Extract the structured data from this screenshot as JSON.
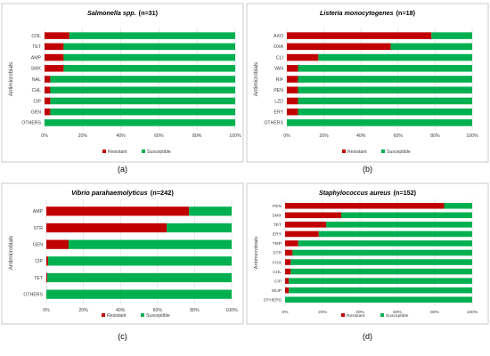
{
  "chart_data": [
    {
      "type": "bar",
      "orientation": "horizontal",
      "stacked": true,
      "percent": true,
      "title_italic": "Salmonella spp.",
      "title_suffix": "(n=31)",
      "caption": "(a)",
      "ylabel": "Antimicrobials",
      "xlabel": "",
      "categories": [
        "COL",
        "TET",
        "AMP",
        "SMX",
        "NAL",
        "CHL",
        "CIP",
        "GEN",
        "OTHERS"
      ],
      "series": [
        {
          "name": "Resistant",
          "values": [
            13,
            10,
            10,
            10,
            3,
            3,
            3,
            3,
            0
          ]
        },
        {
          "name": "Susceptible",
          "values": [
            87,
            90,
            90,
            90,
            97,
            97,
            97,
            97,
            100
          ]
        }
      ],
      "xlim": [
        0,
        100
      ],
      "x_ticks": [
        "0%",
        "20%",
        "40%",
        "60%",
        "80%",
        "100%"
      ],
      "legend_position": "bottom",
      "grid": true
    },
    {
      "type": "bar",
      "orientation": "horizontal",
      "stacked": true,
      "percent": true,
      "title_italic": "Listeria monocytogenes",
      "title_suffix": "(n=18)",
      "caption": "(b)",
      "ylabel": "Antimicrobials",
      "xlabel": "",
      "categories": [
        "AXO",
        "OXA",
        "CLI",
        "VAN",
        "RIF",
        "PEN",
        "LZD",
        "ERY",
        "OTHERS"
      ],
      "series": [
        {
          "name": "Resistant",
          "values": [
            78,
            56,
            17,
            6,
            6,
            6,
            6,
            6,
            0
          ]
        },
        {
          "name": "Susceptible",
          "values": [
            22,
            44,
            83,
            94,
            94,
            94,
            94,
            94,
            100
          ]
        }
      ],
      "xlim": [
        0,
        100
      ],
      "x_ticks": [
        "0%",
        "20%",
        "40%",
        "60%",
        "80%",
        "100%"
      ],
      "legend_position": "bottom",
      "grid": true
    },
    {
      "type": "bar",
      "orientation": "horizontal",
      "stacked": true,
      "percent": true,
      "title_italic": "Vibrio parahaemolyticus",
      "title_suffix": "(n=242)",
      "caption": "(c)",
      "ylabel": "Antimicrobials",
      "xlabel": "",
      "categories": [
        "AMP",
        "STR",
        "GEN",
        "CIP",
        "TET",
        "OTHERS"
      ],
      "series": [
        {
          "name": "Resistant",
          "values": [
            77,
            65,
            12,
            1,
            0.5,
            0
          ]
        },
        {
          "name": "Susceptible",
          "values": [
            23,
            35,
            88,
            99,
            99.5,
            100
          ]
        }
      ],
      "xlim": [
        0,
        100
      ],
      "x_ticks": [
        "0%",
        "20%",
        "40%",
        "60%",
        "80%",
        "100%"
      ],
      "legend_position": "bottom",
      "grid": true
    },
    {
      "type": "bar",
      "orientation": "horizontal",
      "stacked": true,
      "percent": true,
      "title_italic": "Staphylococcus aureus",
      "title_suffix": "(n=152)",
      "caption": "(d)",
      "ylabel": "Antimicrobials",
      "xlabel": "",
      "categories": [
        "PEN",
        "SMX",
        "TET",
        "ERY",
        "TMP",
        "STR",
        "FOX",
        "CHL",
        "CIP",
        "MUP",
        "OTHERS"
      ],
      "series": [
        {
          "name": "Resistant",
          "values": [
            85,
            30,
            22,
            18,
            7,
            4,
            3,
            3,
            2,
            2,
            0
          ]
        },
        {
          "name": "Susceptible",
          "values": [
            15,
            70,
            78,
            82,
            93,
            96,
            97,
            97,
            98,
            98,
            100
          ]
        }
      ],
      "xlim": [
        0,
        100
      ],
      "x_ticks": [
        "0%",
        "20%",
        "40%",
        "60%",
        "80%",
        "100%"
      ],
      "legend_position": "bottom",
      "grid": true
    }
  ],
  "colors": {
    "resistant": "#c00000",
    "susceptible": "#00b050",
    "frame": "#bfbfbf",
    "grid": "#d9d9d9"
  }
}
